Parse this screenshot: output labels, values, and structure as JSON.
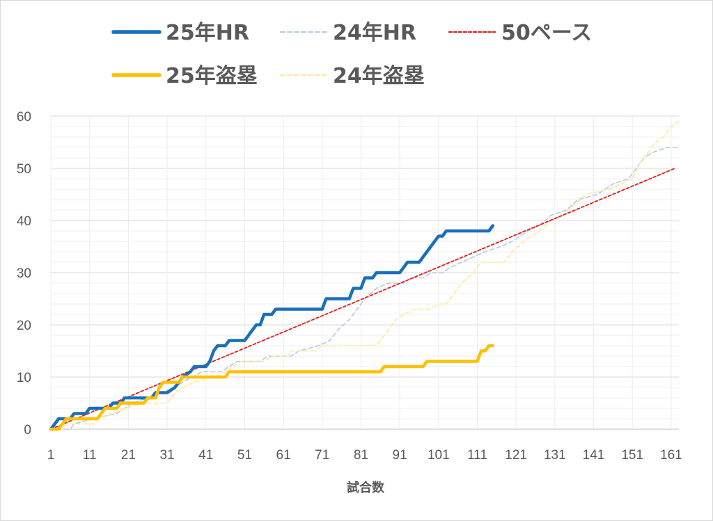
{
  "chart_data": {
    "type": "line",
    "title": "",
    "xlabel": "試合数",
    "ylabel": "",
    "xlim": [
      1,
      163
    ],
    "ylim": [
      0,
      60
    ],
    "x_ticks": [
      1,
      11,
      21,
      31,
      41,
      51,
      61,
      71,
      81,
      91,
      101,
      111,
      121,
      131,
      141,
      151,
      161
    ],
    "y_ticks": [
      0,
      10,
      20,
      30,
      40,
      50,
      60
    ],
    "grid": true,
    "legend_position": "top",
    "series": [
      {
        "name": "25年HR",
        "style": "solid-thick",
        "color": "#1a6fbb",
        "points": [
          [
            1,
            0
          ],
          [
            2,
            1
          ],
          [
            3,
            2
          ],
          [
            6,
            2
          ],
          [
            7,
            3
          ],
          [
            10,
            3
          ],
          [
            11,
            4
          ],
          [
            16,
            4
          ],
          [
            17,
            5
          ],
          [
            19,
            5
          ],
          [
            20,
            6
          ],
          [
            27,
            6
          ],
          [
            28,
            7
          ],
          [
            31,
            7
          ],
          [
            33,
            8
          ],
          [
            34,
            9
          ],
          [
            35,
            10
          ],
          [
            37,
            11
          ],
          [
            38,
            12
          ],
          [
            41,
            12
          ],
          [
            42,
            13
          ],
          [
            43,
            15
          ],
          [
            44,
            16
          ],
          [
            46,
            16
          ],
          [
            47,
            17
          ],
          [
            51,
            17
          ],
          [
            52,
            18
          ],
          [
            54,
            20
          ],
          [
            55,
            20
          ],
          [
            56,
            22
          ],
          [
            58,
            22
          ],
          [
            59,
            23
          ],
          [
            71,
            23
          ],
          [
            72,
            25
          ],
          [
            78,
            25
          ],
          [
            79,
            27
          ],
          [
            81,
            27
          ],
          [
            82,
            29
          ],
          [
            84,
            29
          ],
          [
            85,
            30
          ],
          [
            91,
            30
          ],
          [
            92,
            31
          ],
          [
            93,
            32
          ],
          [
            96,
            32
          ],
          [
            98,
            34
          ],
          [
            100,
            36
          ],
          [
            101,
            37
          ],
          [
            102,
            37
          ],
          [
            103,
            38
          ],
          [
            114,
            38
          ],
          [
            115,
            39
          ]
        ]
      },
      {
        "name": "24年HR",
        "style": "dashed-thin",
        "color": "#b4c7e7",
        "points": [
          [
            1,
            0
          ],
          [
            6,
            0
          ],
          [
            7,
            1
          ],
          [
            12,
            2
          ],
          [
            18,
            3
          ],
          [
            22,
            5
          ],
          [
            26,
            6
          ],
          [
            30,
            7
          ],
          [
            35,
            9
          ],
          [
            40,
            11
          ],
          [
            45,
            11
          ],
          [
            47,
            12
          ],
          [
            49,
            13
          ],
          [
            55,
            13
          ],
          [
            57,
            14
          ],
          [
            63,
            14
          ],
          [
            65,
            15
          ],
          [
            70,
            16
          ],
          [
            73,
            17
          ],
          [
            75,
            19
          ],
          [
            78,
            21
          ],
          [
            80,
            23
          ],
          [
            82,
            25
          ],
          [
            85,
            27
          ],
          [
            88,
            28
          ],
          [
            92,
            28
          ],
          [
            94,
            29
          ],
          [
            97,
            29
          ],
          [
            99,
            30
          ],
          [
            102,
            30
          ],
          [
            104,
            31
          ],
          [
            107,
            32
          ],
          [
            110,
            33
          ],
          [
            113,
            34
          ],
          [
            117,
            35
          ],
          [
            120,
            36
          ],
          [
            124,
            38
          ],
          [
            127,
            39
          ],
          [
            130,
            41
          ],
          [
            134,
            42
          ],
          [
            137,
            44
          ],
          [
            142,
            45
          ],
          [
            146,
            47
          ],
          [
            150,
            48
          ],
          [
            152,
            50
          ],
          [
            154,
            52
          ],
          [
            156,
            53
          ],
          [
            160,
            54
          ],
          [
            163,
            54
          ]
        ]
      },
      {
        "name": "50ペース",
        "style": "dashed-red",
        "color": "#e81818",
        "points": [
          [
            0,
            0
          ],
          [
            162,
            50
          ]
        ]
      },
      {
        "name": "25年盗塁",
        "style": "solid-thick",
        "color": "#ffc000",
        "points": [
          [
            1,
            0
          ],
          [
            3,
            0
          ],
          [
            4,
            1
          ],
          [
            5,
            2
          ],
          [
            13,
            2
          ],
          [
            14,
            3
          ],
          [
            15,
            4
          ],
          [
            18,
            4
          ],
          [
            19,
            5
          ],
          [
            25,
            5
          ],
          [
            26,
            6
          ],
          [
            28,
            6
          ],
          [
            29,
            8
          ],
          [
            30,
            9
          ],
          [
            34,
            9
          ],
          [
            35,
            10
          ],
          [
            46,
            10
          ],
          [
            47,
            11
          ],
          [
            86,
            11
          ],
          [
            87,
            12
          ],
          [
            97,
            12
          ],
          [
            98,
            13
          ],
          [
            111,
            13
          ],
          [
            112,
            15
          ],
          [
            113,
            15
          ],
          [
            114,
            16
          ],
          [
            115,
            16
          ]
        ]
      },
      {
        "name": "24年盗塁",
        "style": "dashed-thin",
        "color": "#ffe699",
        "points": [
          [
            1,
            0
          ],
          [
            4,
            0
          ],
          [
            5,
            1
          ],
          [
            12,
            1
          ],
          [
            13,
            2
          ],
          [
            17,
            3
          ],
          [
            20,
            4
          ],
          [
            25,
            5
          ],
          [
            31,
            5
          ],
          [
            33,
            7
          ],
          [
            35,
            8
          ],
          [
            38,
            9
          ],
          [
            43,
            10
          ],
          [
            46,
            11
          ],
          [
            48,
            12
          ],
          [
            50,
            13
          ],
          [
            56,
            13
          ],
          [
            58,
            14
          ],
          [
            62,
            14
          ],
          [
            63,
            15
          ],
          [
            69,
            15
          ],
          [
            71,
            16
          ],
          [
            85,
            16
          ],
          [
            86,
            17
          ],
          [
            88,
            19
          ],
          [
            90,
            21
          ],
          [
            92,
            22
          ],
          [
            95,
            23
          ],
          [
            99,
            23
          ],
          [
            101,
            24
          ],
          [
            103,
            24
          ],
          [
            105,
            26
          ],
          [
            107,
            28
          ],
          [
            110,
            30
          ],
          [
            112,
            32
          ],
          [
            118,
            32
          ],
          [
            120,
            34
          ],
          [
            123,
            36
          ],
          [
            127,
            38
          ],
          [
            130,
            40
          ],
          [
            133,
            41
          ],
          [
            136,
            43
          ],
          [
            139,
            45
          ],
          [
            145,
            46
          ],
          [
            148,
            47
          ],
          [
            151,
            48
          ],
          [
            153,
            51
          ],
          [
            155,
            53
          ],
          [
            157,
            55
          ],
          [
            159,
            56
          ],
          [
            161,
            58
          ],
          [
            163,
            59
          ]
        ]
      }
    ]
  }
}
